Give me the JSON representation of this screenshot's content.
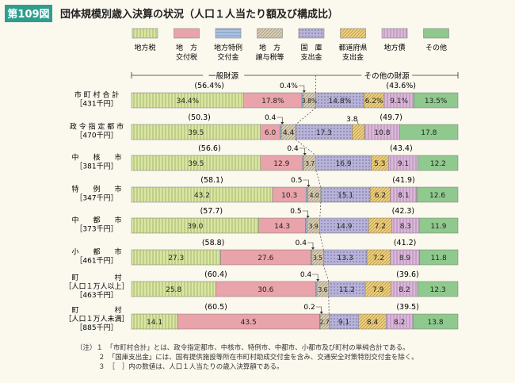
{
  "header": {
    "badge": "第109図",
    "title": "団体規模別歳入決算の状況（人口１人当たり額及び構成比）"
  },
  "chart_data": {
    "type": "bar",
    "orientation": "horizontal",
    "stacked": true,
    "unit": "%",
    "series": [
      {
        "key": "tax",
        "legend": [
          "地方税"
        ],
        "color": "#d9e79e",
        "pattern": "vlines"
      },
      {
        "key": "kofu",
        "legend": [
          "地　方",
          "交付税"
        ],
        "color": "#e9a3aa",
        "pattern": "none"
      },
      {
        "key": "tokurei",
        "legend": [
          "地方特例",
          "交付金"
        ],
        "color": "#a9c3e8",
        "pattern": "hlines"
      },
      {
        "key": "joyo",
        "legend": [
          "地　方",
          "譲与税等"
        ],
        "color": "#ddd0b4",
        "pattern": "diag"
      },
      {
        "key": "kokko",
        "legend": [
          "国　庫",
          "支出金"
        ],
        "color": "#b7b3db",
        "pattern": "dots"
      },
      {
        "key": "todofuken",
        "legend": [
          "都道府県",
          "支出金"
        ],
        "color": "#f4d27a",
        "pattern": "diag"
      },
      {
        "key": "chihosai",
        "legend": [
          "地方債"
        ],
        "color": "#ddb7dc",
        "pattern": "vlines"
      },
      {
        "key": "other",
        "legend": [
          "その他"
        ],
        "color": "#8fc98d",
        "pattern": "none"
      }
    ],
    "brackets": {
      "general": "一般財源",
      "other": "その他の財源"
    },
    "rows": [
      {
        "label": [
          "市 町 村 合 計",
          "［431千円］"
        ],
        "general_total": "(56.4%)",
        "other_total": "(43.6%)",
        "values": [
          34.4,
          17.8,
          0.4,
          3.8,
          14.8,
          6.2,
          9.1,
          13.5
        ],
        "labels": [
          "34.4%",
          "17.8%",
          "0.4%",
          "3.8%",
          "14.8%",
          "6.2%",
          "9.1%",
          "13.5%"
        ]
      },
      {
        "label": [
          "政 令 指 定 都 市",
          "［470千円］"
        ],
        "general_total": "(50.3)",
        "other_total": "(49.7)",
        "values": [
          39.5,
          6.0,
          0.4,
          4.4,
          17.3,
          3.8,
          10.8,
          17.8
        ],
        "labels": [
          "39.5",
          "6.0",
          "0.4",
          "4.4",
          "17.3",
          "3.8",
          "10.8",
          "17.8"
        ]
      },
      {
        "label": [
          "中　　核　　市",
          "［381千円］"
        ],
        "general_total": "(56.6)",
        "other_total": "(43.4)",
        "values": [
          39.5,
          12.9,
          0.4,
          3.7,
          16.9,
          5.3,
          9.1,
          12.2
        ],
        "labels": [
          "39.5",
          "12.9",
          "0.4",
          "3.7",
          "16.9",
          "5.3",
          "9.1",
          "12.2"
        ]
      },
      {
        "label": [
          "特　　例　　市",
          "［347千円］"
        ],
        "general_total": "(58.1)",
        "other_total": "(41.9)",
        "values": [
          43.2,
          10.3,
          0.5,
          4.0,
          15.1,
          6.2,
          8.1,
          12.6
        ],
        "labels": [
          "43.2",
          "10.3",
          "0.5",
          "4.0",
          "15.1",
          "6.2",
          "8.1",
          "12.6"
        ]
      },
      {
        "label": [
          "中　　都　　市",
          "［373千円］"
        ],
        "general_total": "(57.7)",
        "other_total": "(42.3)",
        "values": [
          39.0,
          14.3,
          0.5,
          3.9,
          14.9,
          7.2,
          8.3,
          11.9
        ],
        "labels": [
          "39.0",
          "14.3",
          "0.5",
          "3.9",
          "14.9",
          "7.2",
          "8.3",
          "11.9"
        ]
      },
      {
        "label": [
          "小　　都　　市",
          "［461千円］"
        ],
        "general_total": "(58.8)",
        "other_total": "(41.2)",
        "values": [
          27.3,
          27.6,
          0.4,
          3.5,
          13.3,
          7.2,
          8.9,
          11.8
        ],
        "labels": [
          "27.3",
          "27.6",
          "0.4",
          "3.5",
          "13.3",
          "7.2",
          "8.9",
          "11.8"
        ]
      },
      {
        "label": [
          "町　　　　　村",
          "［人口１万人以上］",
          "［463千円］"
        ],
        "general_total": "(60.4)",
        "other_total": "(39.6)",
        "values": [
          25.8,
          30.6,
          0.4,
          3.6,
          11.2,
          7.9,
          8.2,
          12.3
        ],
        "labels": [
          "25.8",
          "30.6",
          "0.4",
          "3.6",
          "11.2",
          "7.9",
          "8.2",
          "12.3"
        ]
      },
      {
        "label": [
          "町　　　　　村",
          "［人口１万人未満］",
          "［885千円］"
        ],
        "general_total": "(60.5)",
        "other_total": "(39.5)",
        "values": [
          14.1,
          43.5,
          0.2,
          2.7,
          9.1,
          8.4,
          8.2,
          13.8
        ],
        "labels": [
          "14.1",
          "43.5",
          "0.2",
          "2.7",
          "9.1",
          "8.4",
          "8.2",
          "13.8"
        ]
      }
    ]
  },
  "notes": [
    "（注）１　「市町村合計」とは、政令指定都市、中核市、特例市、中都市、小都市及び町村の単純合計である。",
    "２　「国庫支出金」には、国有提供施設等所在市町村助成交付金を含み、交通安全対策特別交付金を除く。",
    "３　［　］内の数値は、人口１人当たりの歳入決算額である。"
  ]
}
